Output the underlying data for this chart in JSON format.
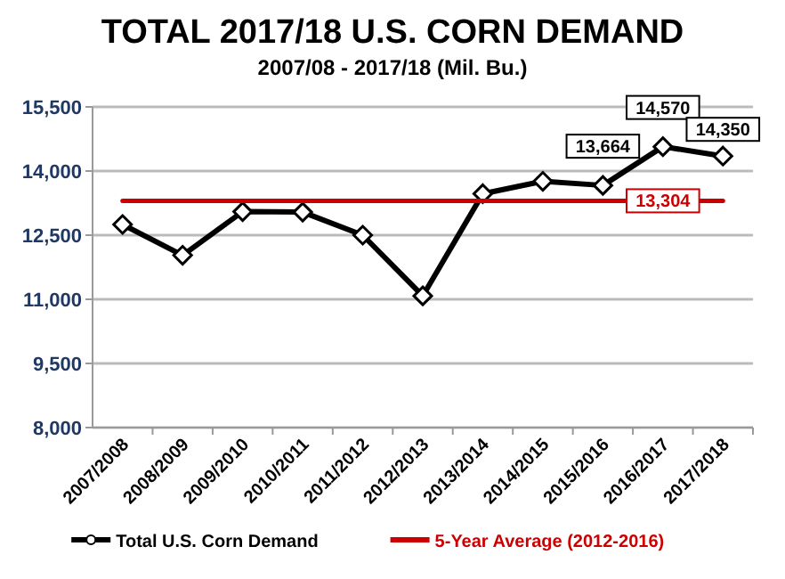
{
  "chart_data": {
    "type": "line",
    "title": "TOTAL 2017/18 U.S. CORN DEMAND",
    "subtitle": "2007/08 - 2017/18 (Mil. Bu.)",
    "categories": [
      "2007/2008",
      "2008/2009",
      "2009/2010",
      "2010/2011",
      "2011/2012",
      "2012/2013",
      "2013/2014",
      "2014/2015",
      "2015/2016",
      "2016/2017",
      "2017/2018"
    ],
    "series": [
      {
        "name": "Total U.S. Corn Demand",
        "color": "#000000",
        "marker": "diamond",
        "values": [
          12750,
          12030,
          13050,
          13040,
          12500,
          11080,
          13470,
          13760,
          13664,
          14570,
          14350
        ],
        "value_labels": [
          null,
          null,
          null,
          null,
          null,
          null,
          null,
          null,
          "13,664",
          "14,570",
          "14,350"
        ]
      },
      {
        "name": "5-Year Average (2012-2016)",
        "color": "#cc0000",
        "marker": "none",
        "values": [
          13304,
          13304,
          13304,
          13304,
          13304,
          13304,
          13304,
          13304,
          13304,
          13304,
          13304
        ],
        "value_labels": [
          null,
          null,
          null,
          null,
          null,
          null,
          null,
          null,
          null,
          "13,304",
          null
        ]
      }
    ],
    "ylim": [
      8000,
      15500
    ],
    "yticks": [
      {
        "value": 8000,
        "label": "8,000"
      },
      {
        "value": 9500,
        "label": "9,500"
      },
      {
        "value": 11000,
        "label": "11,000"
      },
      {
        "value": 12500,
        "label": "12,500"
      },
      {
        "value": 14000,
        "label": "14,000"
      },
      {
        "value": 15500,
        "label": "15,500"
      }
    ],
    "grid": "y",
    "legend": "bottom"
  }
}
